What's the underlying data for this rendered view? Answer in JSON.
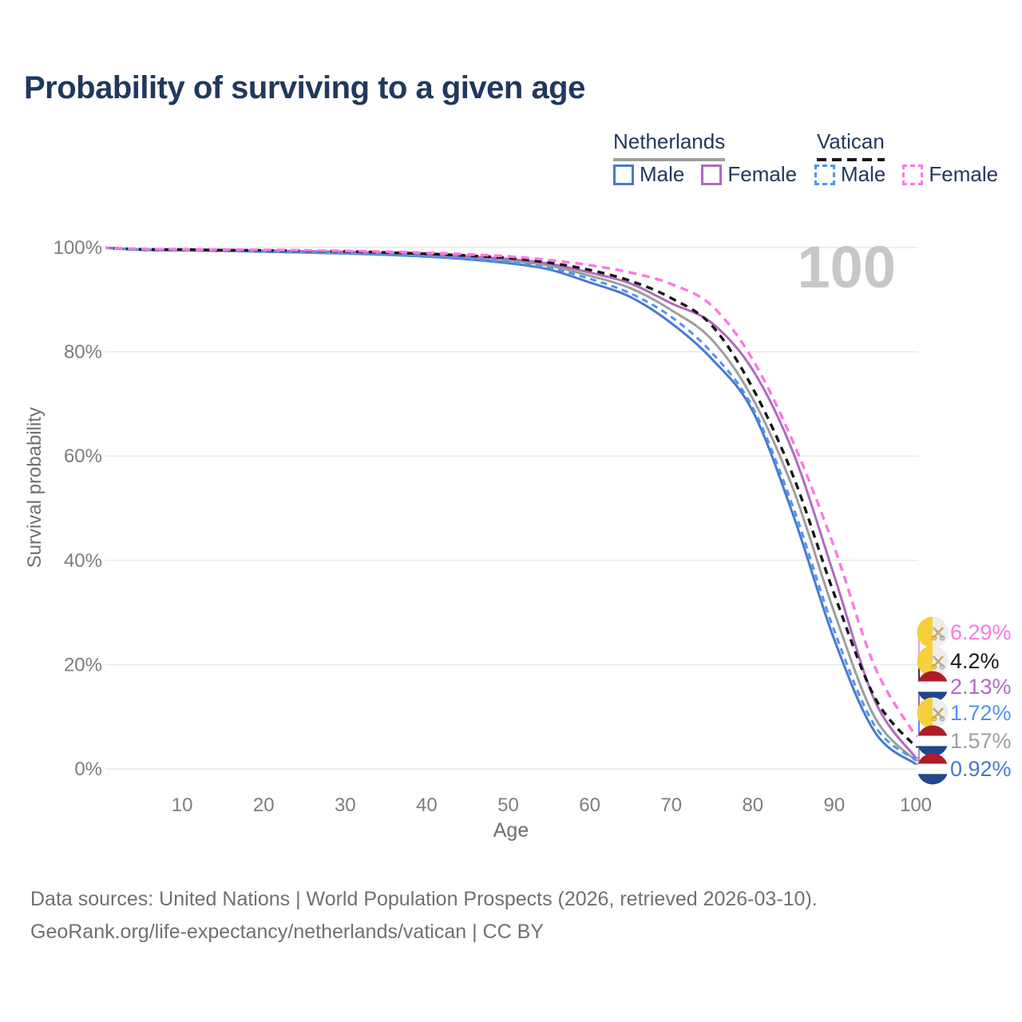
{
  "title": "Probability of surviving to a given age",
  "watermark_age": "100",
  "legend": {
    "groups": [
      {
        "label": "Netherlands",
        "line_style": "solid",
        "line_color": "#9e9e9e",
        "items": [
          {
            "label": "Male",
            "swatch_color": "#4679d2",
            "swatch_style": "solid"
          },
          {
            "label": "Female",
            "swatch_color": "#ae6bbd",
            "swatch_style": "solid"
          }
        ]
      },
      {
        "label": "Vatican",
        "line_style": "dashed",
        "line_color": "#161616",
        "items": [
          {
            "label": "Male",
            "swatch_color": "#4f94f0",
            "swatch_style": "dashed"
          },
          {
            "label": "Female",
            "swatch_color": "#fb79e3",
            "swatch_style": "dashed"
          }
        ]
      }
    ]
  },
  "chart_data": {
    "type": "line",
    "title": "Probability of surviving to a given age",
    "xlabel": "Age",
    "ylabel": "Survival probability",
    "xlim": [
      0,
      100
    ],
    "ylim": [
      0,
      100
    ],
    "grid": "horizontal",
    "legend_position": "top-right",
    "current_age_indicator": "100",
    "xticks": [
      "10",
      "20",
      "30",
      "40",
      "50",
      "60",
      "70",
      "80",
      "90",
      "100"
    ],
    "yticks": [
      {
        "value": 0,
        "label": "0%"
      },
      {
        "value": 20,
        "label": "20%"
      },
      {
        "value": 40,
        "label": "40%"
      },
      {
        "value": 60,
        "label": "60%"
      },
      {
        "value": 80,
        "label": "80%"
      },
      {
        "value": 100,
        "label": "100%"
      }
    ],
    "x_ages": [
      0,
      5,
      10,
      15,
      20,
      25,
      30,
      35,
      40,
      45,
      50,
      55,
      60,
      65,
      70,
      75,
      80,
      85,
      90,
      95,
      100
    ],
    "series": [
      {
        "name": "Netherlands Male",
        "country": "Netherlands",
        "sex": "Male",
        "color": "#4679d2",
        "dash": null,
        "width": 3,
        "flag": "netherlands",
        "end_label": "0.92%",
        "values": [
          100,
          99.55,
          99.45,
          99.35,
          99.2,
          99.05,
          98.85,
          98.6,
          98.25,
          97.75,
          97.0,
          95.8,
          93.3,
          90.5,
          85.5,
          78.6,
          68.6,
          48.5,
          24.8,
          7.0,
          0.92
        ]
      },
      {
        "name": "Netherlands",
        "country": "Netherlands",
        "sex": "Both",
        "color": "#9e9e9e",
        "dash": null,
        "width": 3,
        "flag": "netherlands",
        "end_label": "1.57%",
        "values": [
          100,
          99.6,
          99.5,
          99.4,
          99.3,
          99.2,
          99.0,
          98.8,
          98.5,
          98.1,
          97.5,
          96.5,
          94.6,
          92.2,
          88.0,
          82.3,
          71.0,
          53.5,
          30.0,
          9.8,
          1.57
        ]
      },
      {
        "name": "Netherlands Female",
        "country": "Netherlands",
        "sex": "Female",
        "color": "#ae6bbd",
        "dash": null,
        "width": 3,
        "flag": "netherlands",
        "end_label": "2.13%",
        "values": [
          100,
          99.6,
          99.55,
          99.5,
          99.4,
          99.3,
          99.15,
          98.95,
          98.7,
          98.3,
          97.8,
          96.9,
          95.2,
          93.1,
          89.3,
          85.5,
          76.5,
          60.5,
          37.0,
          13.0,
          2.13
        ]
      },
      {
        "name": "Vatican Male",
        "country": "Vatican",
        "sex": "Male",
        "color": "#4f94f0",
        "dash": "8 6",
        "width": 3,
        "flag": "vatican",
        "end_label": "1.72%",
        "values": [
          100,
          99.55,
          99.45,
          99.35,
          99.25,
          99.1,
          98.9,
          98.65,
          98.35,
          97.9,
          97.2,
          96.1,
          94.0,
          91.2,
          86.7,
          79.8,
          69.3,
          50.0,
          26.5,
          8.2,
          1.72
        ]
      },
      {
        "name": "Vatican",
        "country": "Vatican",
        "sex": "Both",
        "color": "#161616",
        "dash": "9 7",
        "width": 3.4,
        "flag": "vatican",
        "end_label": "4.2%",
        "values": [
          100,
          99.65,
          99.6,
          99.5,
          99.45,
          99.35,
          99.25,
          99.05,
          98.8,
          98.45,
          98.0,
          97.1,
          95.7,
          93.6,
          90.3,
          85.0,
          73.0,
          56.0,
          33.5,
          13.6,
          4.2
        ]
      },
      {
        "name": "Vatican Female",
        "country": "Vatican",
        "sex": "Female",
        "color": "#fb79e3",
        "dash": "10 7",
        "width": 3.4,
        "flag": "vatican",
        "end_label": "6.29%",
        "values": [
          100,
          99.7,
          99.65,
          99.6,
          99.55,
          99.45,
          99.35,
          99.2,
          99.0,
          98.7,
          98.3,
          97.6,
          96.6,
          95.2,
          93.0,
          88.8,
          78.5,
          62.5,
          42.5,
          19.5,
          6.29
        ]
      }
    ]
  },
  "footer": {
    "line1": "Data sources: United Nations | World Population Prospects (2026, retrieved 2026-03-10).",
    "line2": "GeoRank.org/life-expectancy/netherlands/vatican | CC BY"
  }
}
